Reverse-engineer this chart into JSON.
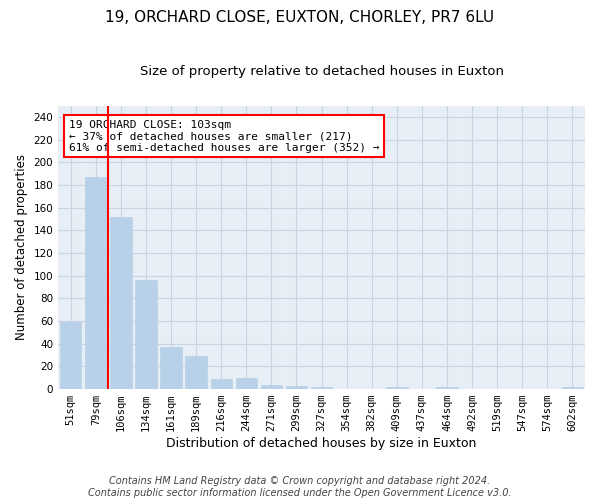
{
  "title1": "19, ORCHARD CLOSE, EUXTON, CHORLEY, PR7 6LU",
  "title2": "Size of property relative to detached houses in Euxton",
  "xlabel": "Distribution of detached houses by size in Euxton",
  "ylabel": "Number of detached properties",
  "categories": [
    "51sqm",
    "79sqm",
    "106sqm",
    "134sqm",
    "161sqm",
    "189sqm",
    "216sqm",
    "244sqm",
    "271sqm",
    "299sqm",
    "327sqm",
    "354sqm",
    "382sqm",
    "409sqm",
    "437sqm",
    "464sqm",
    "492sqm",
    "519sqm",
    "547sqm",
    "574sqm",
    "602sqm"
  ],
  "values": [
    59,
    187,
    152,
    96,
    37,
    29,
    9,
    10,
    4,
    3,
    2,
    0,
    0,
    2,
    0,
    2,
    0,
    0,
    0,
    0,
    2
  ],
  "bar_color": "#b8d0e8",
  "bar_edgecolor": "#b8d0e8",
  "grid_color": "#c8d4e4",
  "bg_color": "#e8eef6",
  "red_line_x": 1.5,
  "annotation_text": "19 ORCHARD CLOSE: 103sqm\n← 37% of detached houses are smaller (217)\n61% of semi-detached houses are larger (352) →",
  "annotation_box_color": "white",
  "annotation_box_edgecolor": "red",
  "ylim": [
    0,
    250
  ],
  "yticks": [
    0,
    20,
    40,
    60,
    80,
    100,
    120,
    140,
    160,
    180,
    200,
    220,
    240
  ],
  "footer1": "Contains HM Land Registry data © Crown copyright and database right 2024.",
  "footer2": "Contains public sector information licensed under the Open Government Licence v3.0.",
  "title1_fontsize": 11,
  "title2_fontsize": 9.5,
  "xlabel_fontsize": 9,
  "ylabel_fontsize": 8.5,
  "tick_fontsize": 7.5,
  "annot_fontsize": 8,
  "footer_fontsize": 7
}
